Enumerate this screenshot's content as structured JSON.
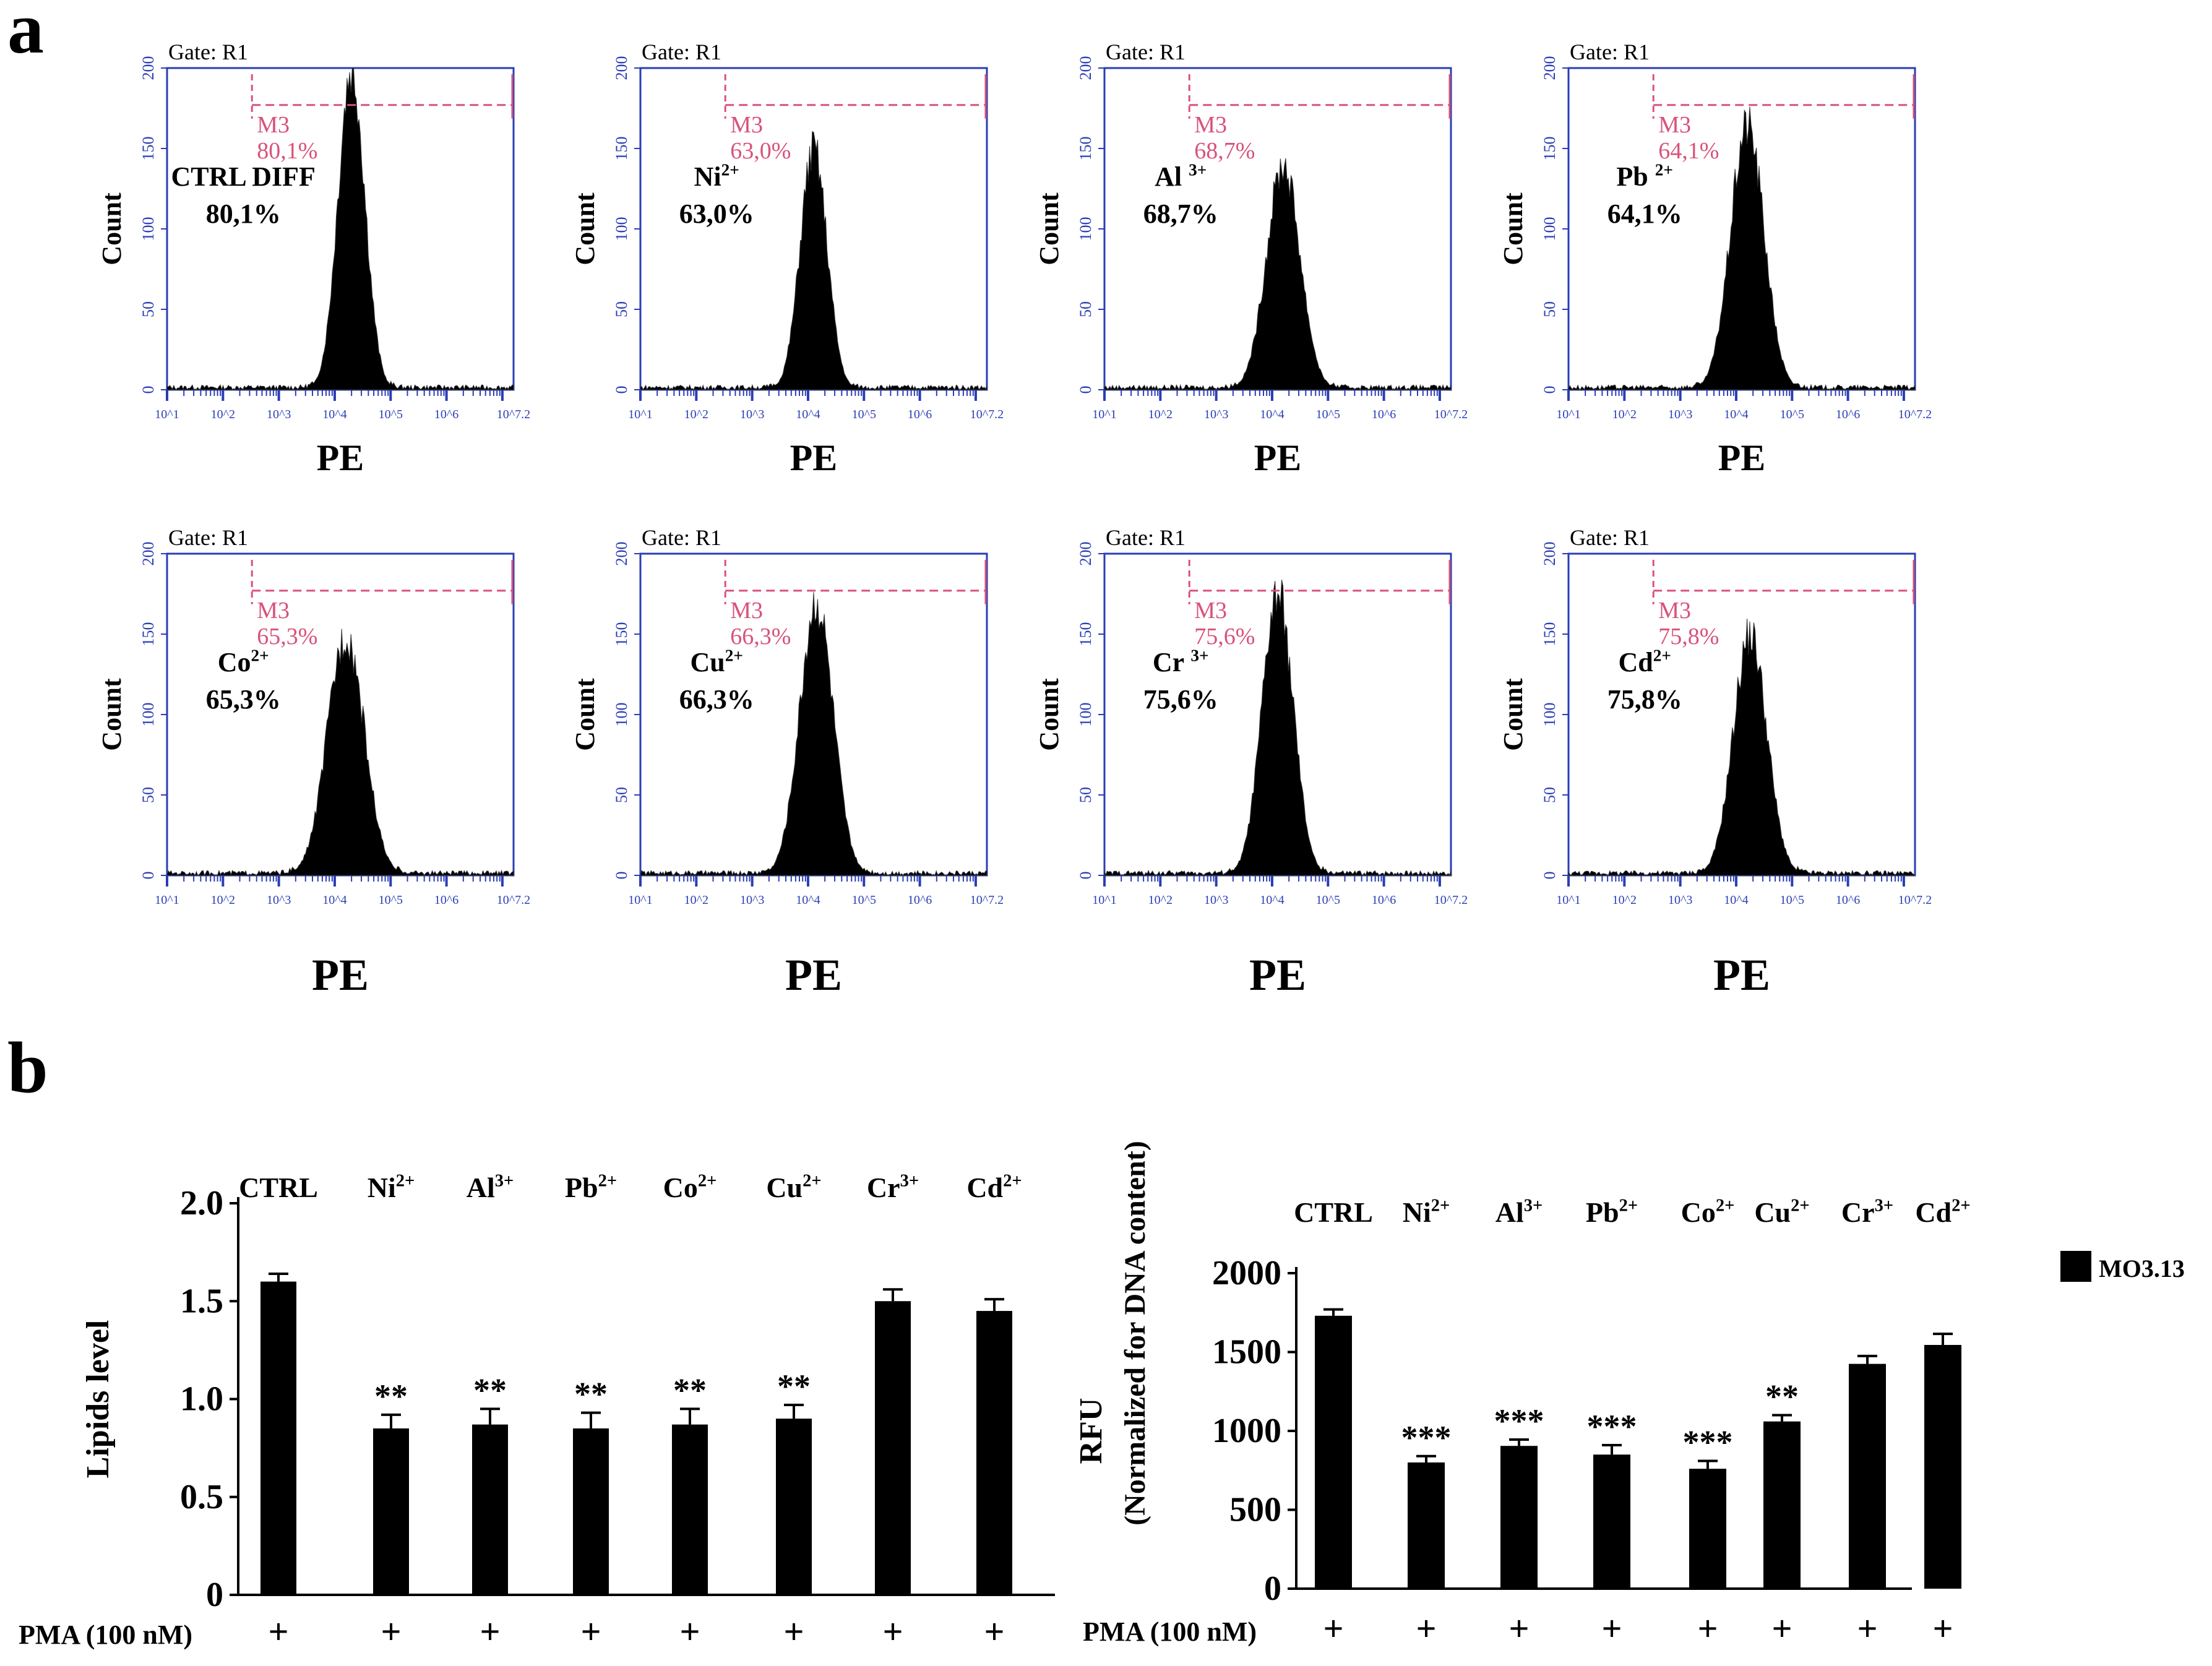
{
  "panel_labels": {
    "a": "a",
    "b": "b"
  },
  "colors": {
    "axis_blue": "#2a3db5",
    "gate_red": "#d8527a",
    "fill": "#000000",
    "text": "#000000"
  },
  "histograms": {
    "gate_label": "Gate: R1",
    "marker_label": "M3",
    "y_axis_label": "Count",
    "x_axis_label": "PE",
    "y_ticks": [
      "0",
      "50",
      "100",
      "150",
      "200"
    ],
    "x_ticks": [
      "10^1",
      "10^2",
      "10^3",
      "10^4",
      "10^5",
      "10^6",
      "10^7.2"
    ],
    "items": [
      {
        "name": "CTRL DIFF",
        "ion": "",
        "value": "80,1%",
        "marker_value": "80,1%",
        "peak_log": 4.3,
        "sigma": 0.24,
        "peak_count": 200
      },
      {
        "name": "Ni",
        "ion": "2+",
        "value": "63,0%",
        "marker_value": "63,0%",
        "peak_log": 4.1,
        "sigma": 0.24,
        "peak_count": 150
      },
      {
        "name": "Al ",
        "ion": "3+",
        "value": "68,7%",
        "marker_value": "68,7%",
        "peak_log": 4.2,
        "sigma": 0.3,
        "peak_count": 140
      },
      {
        "name": "Pb ",
        "ion": "2+",
        "value": "64,1%",
        "marker_value": "64,1%",
        "peak_log": 4.2,
        "sigma": 0.3,
        "peak_count": 165
      },
      {
        "name": "Co",
        "ion": "2+",
        "value": "65,3%",
        "marker_value": "65,3%",
        "peak_log": 4.2,
        "sigma": 0.33,
        "peak_count": 150
      },
      {
        "name": "Cu",
        "ion": "2+",
        "value": "66,3%",
        "marker_value": "66,3%",
        "peak_log": 4.15,
        "sigma": 0.3,
        "peak_count": 170
      },
      {
        "name": "Cr ",
        "ion": "3+",
        "value": "75,6%",
        "marker_value": "75,6%",
        "peak_log": 4.1,
        "sigma": 0.28,
        "peak_count": 175
      },
      {
        "name": "Cd",
        "ion": "2+",
        "value": "75,8%",
        "marker_value": "75,8%",
        "peak_log": 4.25,
        "sigma": 0.3,
        "peak_count": 150
      }
    ]
  },
  "chart_data": [
    {
      "type": "bar",
      "title": "",
      "xlabel": "",
      "ylabel": "Lipids level",
      "ylim": [
        0,
        2.0
      ],
      "yticks": [
        "0",
        "0.5",
        "1.0",
        "1.5",
        "2.0"
      ],
      "categories": [
        {
          "base": "CTRL",
          "sup": ""
        },
        {
          "base": "Ni",
          "sup": "2+"
        },
        {
          "base": "Al",
          "sup": "3+"
        },
        {
          "base": "Pb",
          "sup": "2+"
        },
        {
          "base": "Co",
          "sup": "2+"
        },
        {
          "base": "Cu",
          "sup": "2+"
        },
        {
          "base": "Cr",
          "sup": "3+"
        },
        {
          "base": "Cd",
          "sup": "2+"
        }
      ],
      "values": [
        1.6,
        0.85,
        0.87,
        0.85,
        0.87,
        0.9,
        1.5,
        1.45
      ],
      "errors": [
        0.04,
        0.07,
        0.08,
        0.08,
        0.08,
        0.07,
        0.06,
        0.06
      ],
      "significance": [
        "",
        "**",
        "**",
        "**",
        "**",
        "**",
        "",
        ""
      ],
      "pma_label": "PMA (100 nM)",
      "pma_marks": [
        "+",
        "+",
        "+",
        "+",
        "+",
        "+",
        "+",
        "+"
      ]
    },
    {
      "type": "bar",
      "title": "",
      "xlabel": "",
      "ylabel": "RFU",
      "ylabel2": "(Normalized  for DNA content)",
      "ylim": [
        0,
        2000
      ],
      "yticks": [
        "0",
        "500",
        "1000",
        "1500",
        "2000"
      ],
      "categories": [
        {
          "base": "CTRL",
          "sup": ""
        },
        {
          "base": "Ni",
          "sup": "2+"
        },
        {
          "base": "Al",
          "sup": "3+"
        },
        {
          "base": "Pb",
          "sup": "2+"
        },
        {
          "base": "Co",
          "sup": "2+"
        },
        {
          "base": "Cu",
          "sup": "2+"
        },
        {
          "base": "Cr",
          "sup": "3+"
        },
        {
          "base": "Cd",
          "sup": "2+"
        }
      ],
      "values": [
        1730,
        800,
        905,
        850,
        760,
        1060,
        1425,
        1545
      ],
      "errors": [
        40,
        40,
        40,
        60,
        50,
        40,
        50,
        70
      ],
      "significance": [
        "",
        "***",
        "***",
        "***",
        "***",
        "**",
        "",
        ""
      ],
      "legend": "MO3.13",
      "pma_label": "PMA (100 nM)",
      "pma_marks": [
        "+",
        "+",
        "+",
        "+",
        "+",
        "+",
        "+",
        "+"
      ]
    }
  ]
}
